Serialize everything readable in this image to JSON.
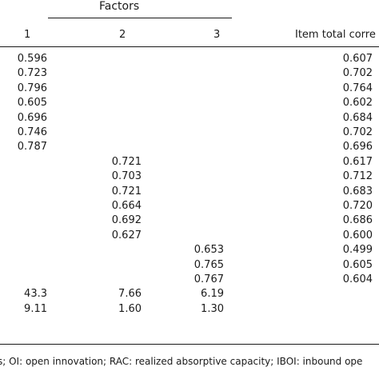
{
  "header": {
    "group_label": "Factors",
    "col1": "1",
    "col2": "2",
    "col3": "3",
    "col4": "Item total corre"
  },
  "rows": [
    [
      "0.596",
      "",
      "",
      "0.607"
    ],
    [
      "0.723",
      "",
      "",
      "0.702"
    ],
    [
      "0.796",
      "",
      "",
      "0.764"
    ],
    [
      "0.605",
      "",
      "",
      "0.602"
    ],
    [
      "0.696",
      "",
      "",
      "0.684"
    ],
    [
      "0.746",
      "",
      "",
      "0.702"
    ],
    [
      "0.787",
      "",
      "",
      "0.696"
    ],
    [
      "",
      "0.721",
      "",
      "0.617"
    ],
    [
      "",
      "0.703",
      "",
      "0.712"
    ],
    [
      "",
      "0.721",
      "",
      "0.683"
    ],
    [
      "",
      "0.664",
      "",
      "0.720"
    ],
    [
      "",
      "0.692",
      "",
      "0.686"
    ],
    [
      "",
      "0.627",
      "",
      "0.600"
    ],
    [
      "",
      "",
      "0.653",
      "0.499"
    ],
    [
      "",
      "",
      "0.765",
      "0.605"
    ],
    [
      "",
      "",
      "0.767",
      "0.604"
    ],
    [
      "43.3",
      "7.66",
      "6.19",
      ""
    ],
    [
      "9.11",
      "1.60",
      "1.30",
      ""
    ]
  ],
  "footnote": "s; OI: open innovation; RAC: realized absorptive capacity; IBOI: inbound ope"
}
